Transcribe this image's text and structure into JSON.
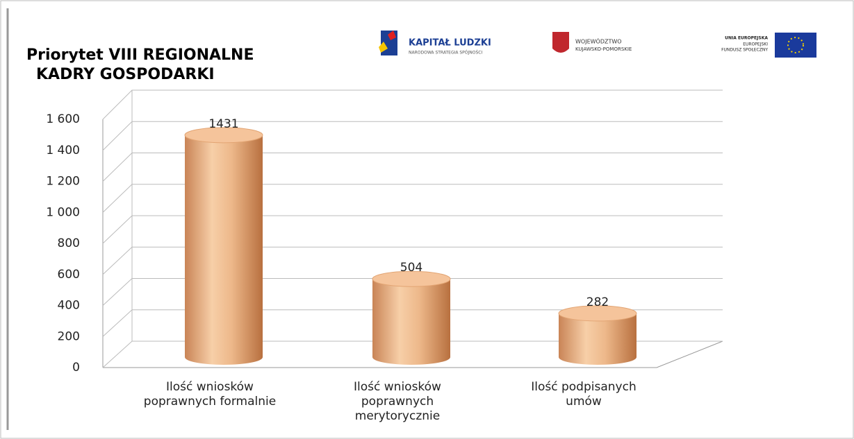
{
  "chart_data": {
    "type": "bar",
    "title": "Priorytet VIII REGIONALNE KADRY GOSPODARKI",
    "logos": [
      "KAPITAŁ LUDZKI",
      "NARODOWA STRATEGIA SPÓJNOŚCI",
      "WOJEWÓDZTWO",
      "KUJAWSKO-POMORSKIE",
      "UNIA EUROPEJSKA",
      "EUROPEJSKI",
      "FUNDUSZ SPOŁECZNY"
    ],
    "categories": [
      "Ilość wniosków poprawnych formalnie",
      "Ilość wniosków poprawnych merytorycznie",
      "Ilość podpisanych umów"
    ],
    "values": [
      1431,
      504,
      282
    ],
    "color": "#e6a97c",
    "ylim": [
      0,
      1600
    ],
    "yticks": [
      0,
      200,
      400,
      600,
      800,
      {
        "value": 1000,
        "label": "1 000"
      },
      {
        "value": 1200,
        "label": "1 200"
      },
      {
        "value": 1400,
        "label": "1 400"
      },
      {
        "value": 1600,
        "label": "1 600"
      }
    ],
    "grid": true
  }
}
